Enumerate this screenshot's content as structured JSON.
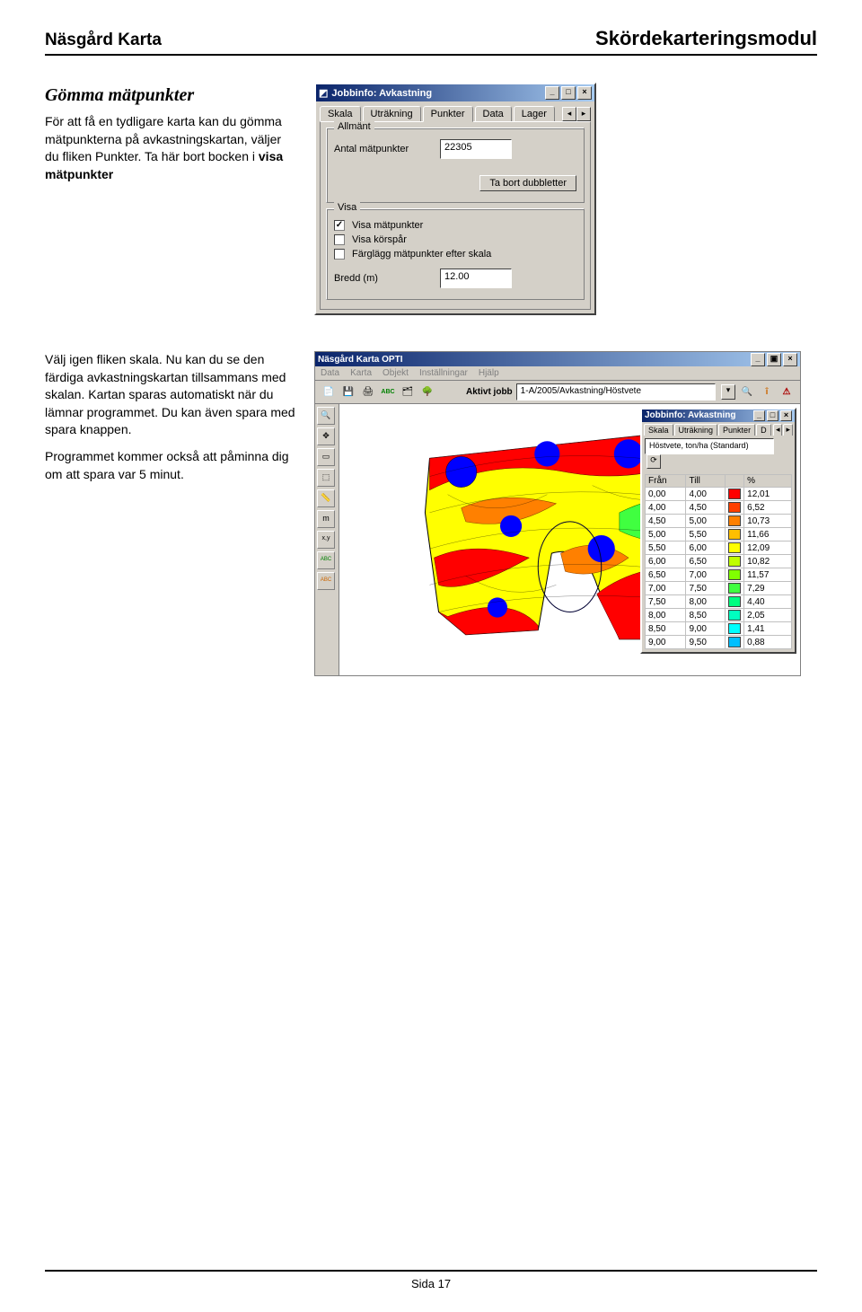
{
  "header": {
    "left": "Näsgård Karta",
    "right": "Skördekarteringsmodul"
  },
  "section1": {
    "title": "Gömma mätpunkter",
    "para1a": "För att få en tydligare karta kan du gömma mätpunkterna på avkastningskartan, väljer du fliken Punkter. Ta här bort bocken i ",
    "para1b": "visa mätpunkter"
  },
  "win1": {
    "title": "Jobbinfo: Avkastning",
    "tabs": [
      "Skala",
      "Uträkning",
      "Punkter",
      "Data",
      "Lager"
    ],
    "active_tab": 2,
    "group_general": "Allmänt",
    "label_points": "Antal mätpunkter",
    "points_value": "22305",
    "btn_dubl": "Ta bort dubbletter",
    "group_show": "Visa",
    "cb_show_points": "Visa mätpunkter",
    "cb_show_points_checked": true,
    "cb_show_tracks": "Visa körspår",
    "cb_color_points": "Färglägg mätpunkter efter skala",
    "label_width": "Bredd (m)",
    "width_value": "12.00"
  },
  "section2": {
    "para1": "Välj igen fliken skala. Nu kan du se den färdiga avkastningskartan tillsammans med skalan. Kartan sparas automatiskt när du lämnar programmet. Du kan även spara med spara knappen.",
    "para2": "Programmet kommer också att påminna dig om att spara var 5 minut."
  },
  "app": {
    "title": "Näsgård Karta OPTI",
    "menu": [
      "Data",
      "Karta",
      "Objekt",
      "Inställningar",
      "Hjälp"
    ],
    "aktivt_label": "Aktivt jobb",
    "aktivt_value": "1-A/2005/Avkastning/Höstvete",
    "jobb_title": "Jobbinfo: Avkastning",
    "jobb_tabs": [
      "Skala",
      "Uträkning",
      "Punkter",
      "D"
    ],
    "scale_name": "Höstvete, ton/ha (Standard)",
    "table": {
      "columns": [
        "Från",
        "Till",
        "%"
      ],
      "rows": [
        {
          "from": "0,00",
          "till": "4,00",
          "pct": "12,01",
          "color": "#ff0000"
        },
        {
          "from": "4,00",
          "till": "4,50",
          "pct": "6,52",
          "color": "#ff4000"
        },
        {
          "from": "4,50",
          "till": "5,00",
          "pct": "10,73",
          "color": "#ff8000"
        },
        {
          "from": "5,00",
          "till": "5,50",
          "pct": "11,66",
          "color": "#ffbf00"
        },
        {
          "from": "5,50",
          "till": "6,00",
          "pct": "12,09",
          "color": "#ffff00"
        },
        {
          "from": "6,00",
          "till": "6,50",
          "pct": "10,82",
          "color": "#bfff00"
        },
        {
          "from": "6,50",
          "till": "7,00",
          "pct": "11,57",
          "color": "#80ff00"
        },
        {
          "from": "7,00",
          "till": "7,50",
          "pct": "7,29",
          "color": "#40ff40"
        },
        {
          "from": "7,50",
          "till": "8,00",
          "pct": "4,40",
          "color": "#00ff80"
        },
        {
          "from": "8,00",
          "till": "8,50",
          "pct": "2,05",
          "color": "#00ffbf"
        },
        {
          "from": "8,50",
          "till": "9,00",
          "pct": "1,41",
          "color": "#00ffff"
        },
        {
          "from": "9,00",
          "till": "9,50",
          "pct": "0,88",
          "color": "#00bfff"
        }
      ]
    },
    "colors": {
      "blue": "#0000ff",
      "red": "#ff0000",
      "orange": "#ff8000",
      "yellow": "#ffff00",
      "lime": "#40ff40",
      "cyan": "#00ffff"
    },
    "side_icons": [
      "🔍",
      "✥",
      "▭",
      "⬚",
      "📏",
      "m",
      "x,y",
      "ABC",
      "ABC"
    ],
    "toolbar_icons": [
      "📄",
      "💾",
      "🖨",
      "ABC",
      "🗂",
      "🌳"
    ]
  },
  "footer": "Sida 17"
}
